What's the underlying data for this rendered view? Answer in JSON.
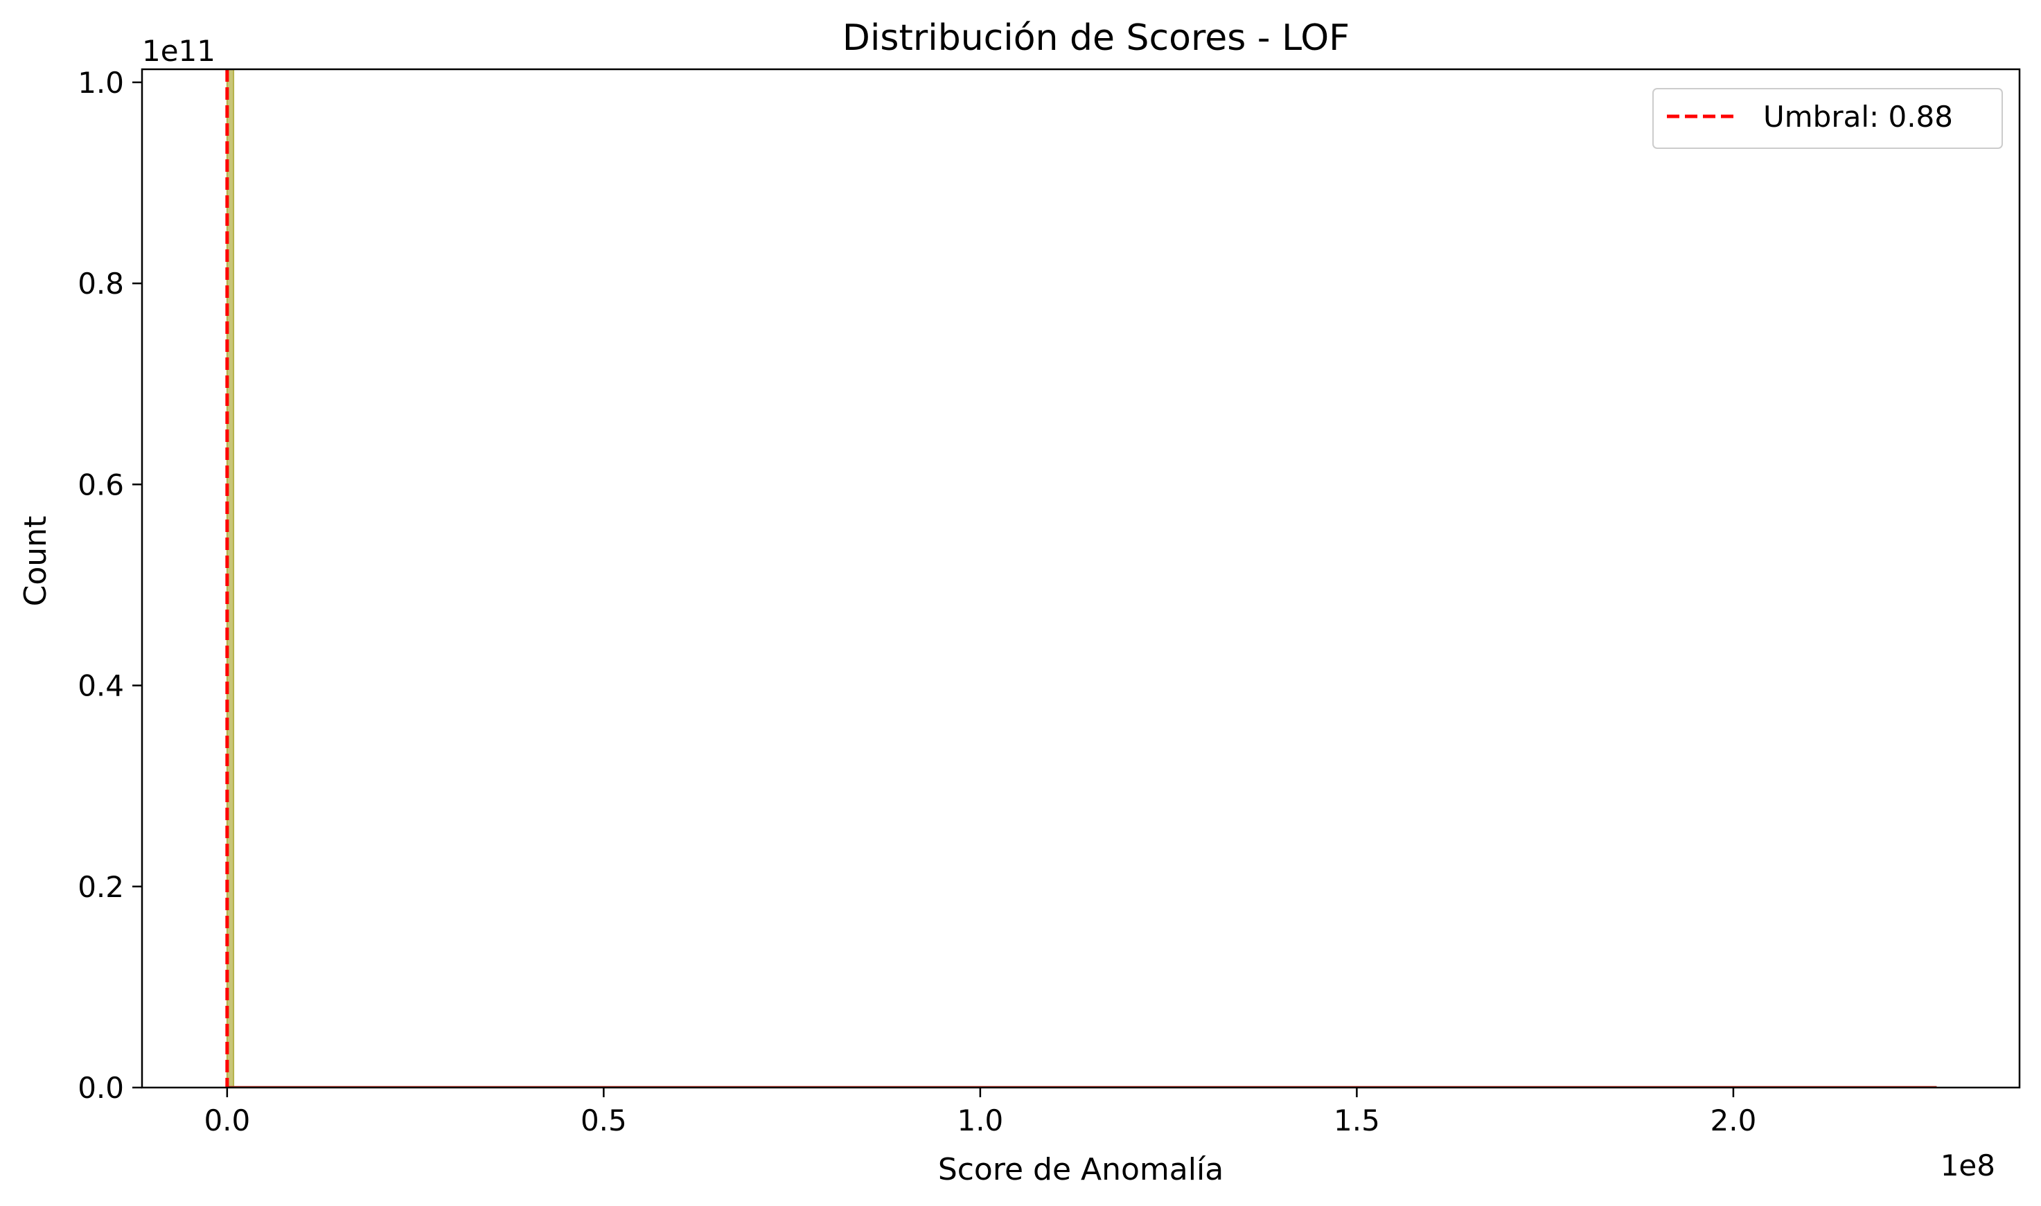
{
  "chart_data": {
    "type": "histogram",
    "title": "Distribución de Scores - LOF",
    "xlabel": "Score de Anomalía",
    "ylabel": "Count",
    "x_offset_text": "1e8",
    "y_offset_text": "1e11",
    "xlim": [
      -0.113,
      2.38
    ],
    "ylim": [
      0,
      1.013
    ],
    "x_ticks": [
      0.0,
      0.5,
      1.0,
      1.5,
      2.0
    ],
    "x_tick_labels": [
      "0.0",
      "0.5",
      "1.0",
      "1.5",
      "2.0"
    ],
    "y_ticks": [
      0.0,
      0.2,
      0.4,
      0.6,
      0.8,
      1.0
    ],
    "y_tick_labels": [
      "0.0",
      "0.2",
      "0.4",
      "0.6",
      "0.8",
      "1.0"
    ],
    "series": [
      {
        "kind": "histogram",
        "color": "#b5b24a",
        "bins": [
          {
            "x0": 0.0,
            "x1": 0.0085,
            "count": 1.013
          }
        ]
      },
      {
        "kind": "kde",
        "color": "#c0392b",
        "x_range": [
          0.0,
          2.27
        ],
        "y_value": 0.0005
      }
    ],
    "threshold": {
      "x": 0.0,
      "color": "#ff0000",
      "style": "dashed",
      "label": "Umbral: 0.88"
    },
    "legend": {
      "position": "top-right",
      "entries": [
        "Umbral: 0.88"
      ]
    },
    "grid": false
  }
}
